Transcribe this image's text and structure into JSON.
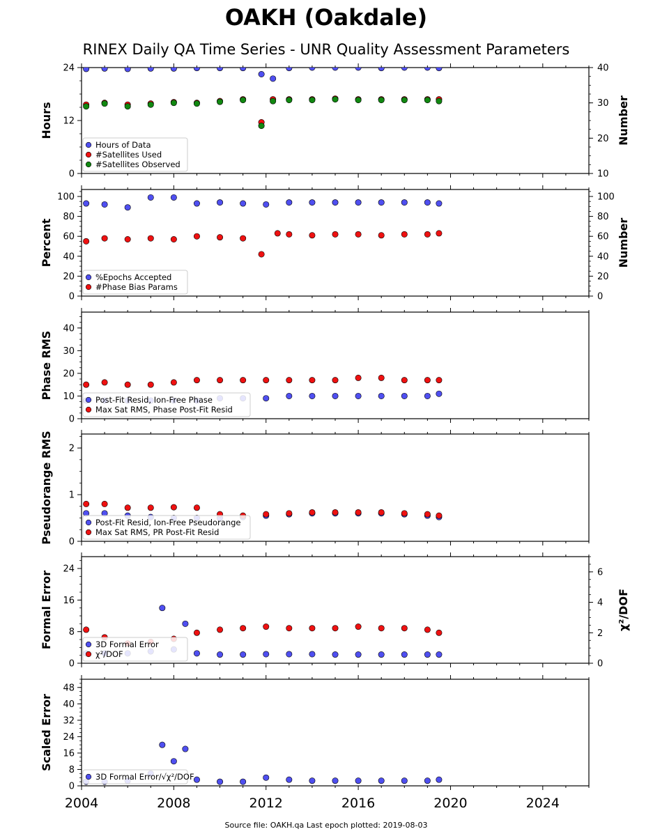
{
  "title": "OAKH (Oakdale)",
  "subtitle": "RINEX Daily QA Time Series - UNR Quality Assessment Parameters",
  "footer": "Source file: OAKH.qa Last epoch plotted: 2019-08-03",
  "colors": {
    "blue": "#4f4ff0",
    "red": "#ee1111",
    "green": "#118811",
    "edge": "#000000"
  },
  "chart_data": [
    {
      "type": "scatter",
      "ylabel": "Hours",
      "ylabel_right": "Number",
      "xlim": [
        2004,
        2026
      ],
      "xticks": [
        "2004",
        "2008",
        "2012",
        "2016",
        "2020",
        "2024"
      ],
      "ylim": [
        0,
        24
      ],
      "yticks": [
        "0",
        "12",
        "24"
      ],
      "ylim_right": [
        10,
        40
      ],
      "yticks_right": [
        "10",
        "20",
        "30",
        "40"
      ],
      "legend": [
        "Hours of Data",
        "#Satellites Used",
        "#Satellites Observed"
      ],
      "series": [
        {
          "name": "Hours of Data",
          "axis": "left",
          "x": [
            2004.2,
            2005.0,
            2006.0,
            2007.0,
            2008.0,
            2009.0,
            2010.0,
            2011.0,
            2011.8,
            2012.3,
            2013.0,
            2014.0,
            2015.0,
            2016.0,
            2017.0,
            2018.0,
            2019.0,
            2019.5
          ],
          "y": [
            23.7,
            23.8,
            23.7,
            23.8,
            23.8,
            23.9,
            23.9,
            23.9,
            22.5,
            21.5,
            23.9,
            24.0,
            24.0,
            24.0,
            23.9,
            24.0,
            24.0,
            23.9
          ]
        },
        {
          "name": "#Satellites Used",
          "axis": "right",
          "x": [
            2004.2,
            2005.0,
            2006.0,
            2007.0,
            2008.0,
            2009.0,
            2010.0,
            2011.0,
            2011.8,
            2012.3,
            2013.0,
            2014.0,
            2015.0,
            2016.0,
            2017.0,
            2018.0,
            2019.0,
            2019.5
          ],
          "y": [
            29.5,
            30.0,
            29.5,
            29.8,
            30.2,
            30.0,
            30.5,
            31.0,
            24.5,
            31.0,
            31.0,
            31.0,
            31.2,
            31.0,
            31.0,
            31.0,
            31.0,
            31.0
          ]
        },
        {
          "name": "#Satellites Observed",
          "axis": "right",
          "x": [
            2004.2,
            2005.0,
            2006.0,
            2007.0,
            2008.0,
            2009.0,
            2010.0,
            2011.0,
            2011.8,
            2012.3,
            2013.0,
            2014.0,
            2015.0,
            2016.0,
            2017.0,
            2018.0,
            2019.0,
            2019.5
          ],
          "y": [
            29.0,
            29.8,
            29.0,
            29.5,
            30.0,
            29.8,
            30.3,
            30.8,
            23.5,
            30.5,
            30.8,
            30.8,
            31.0,
            30.8,
            30.8,
            30.8,
            30.8,
            30.5
          ]
        }
      ]
    },
    {
      "type": "scatter",
      "ylabel": "Percent",
      "ylabel_right": "Number",
      "xlim": [
        2004,
        2026
      ],
      "xticks": [
        "2004",
        "2008",
        "2012",
        "2016",
        "2020",
        "2024"
      ],
      "ylim": [
        0,
        107
      ],
      "yticks": [
        "0",
        "20",
        "40",
        "60",
        "80",
        "100"
      ],
      "ylim_right": [
        0,
        107
      ],
      "yticks_right": [
        "0",
        "20",
        "40",
        "60",
        "80",
        "100"
      ],
      "legend": [
        "%Epochs Accepted",
        "#Phase Bias Params"
      ],
      "series": [
        {
          "name": "%Epochs Accepted",
          "axis": "left",
          "x": [
            2004.2,
            2005.0,
            2006.0,
            2007.0,
            2008.0,
            2009.0,
            2010.0,
            2011.0,
            2012.0,
            2013.0,
            2014.0,
            2015.0,
            2016.0,
            2017.0,
            2018.0,
            2019.0,
            2019.5
          ],
          "y": [
            93,
            92,
            89,
            99,
            99,
            93,
            94,
            93,
            92,
            94,
            94,
            94,
            94,
            94,
            94,
            94,
            93
          ]
        },
        {
          "name": "#Phase Bias Params",
          "axis": "right",
          "x": [
            2004.2,
            2005.0,
            2006.0,
            2007.0,
            2008.0,
            2009.0,
            2010.0,
            2011.0,
            2011.8,
            2012.5,
            2013.0,
            2014.0,
            2015.0,
            2016.0,
            2017.0,
            2018.0,
            2019.0,
            2019.5
          ],
          "y": [
            55,
            58,
            57,
            58,
            57,
            60,
            59,
            58,
            42,
            63,
            62,
            61,
            62,
            62,
            61,
            62,
            62,
            63
          ]
        }
      ]
    },
    {
      "type": "scatter",
      "ylabel": "Phase RMS",
      "xlim": [
        2004,
        2026
      ],
      "xticks": [
        "2004",
        "2008",
        "2012",
        "2016",
        "2020",
        "2024"
      ],
      "ylim": [
        0,
        47
      ],
      "yticks": [
        "0",
        "10",
        "20",
        "30",
        "40"
      ],
      "legend": [
        "Post-Fit Resid, Ion-Free Phase",
        "Max Sat RMS, Phase Post-Fit Resid"
      ],
      "series": [
        {
          "name": "Post-Fit Resid, Ion-Free Phase",
          "x": [
            2004.2,
            2005.0,
            2006.0,
            2007.0,
            2008.0,
            2009.0,
            2010.0,
            2011.0,
            2012.0,
            2013.0,
            2014.0,
            2015.0,
            2016.0,
            2017.0,
            2018.0,
            2019.0,
            2019.5
          ],
          "y": [
            8,
            8,
            8,
            8,
            8,
            8,
            9,
            9,
            9,
            10,
            10,
            10,
            10,
            10,
            10,
            10,
            11
          ]
        },
        {
          "name": "Max Sat RMS, Phase Post-Fit Resid",
          "x": [
            2004.2,
            2005.0,
            2006.0,
            2007.0,
            2008.0,
            2009.0,
            2010.0,
            2011.0,
            2012.0,
            2013.0,
            2014.0,
            2015.0,
            2016.0,
            2017.0,
            2018.0,
            2019.0,
            2019.5
          ],
          "y": [
            15,
            16,
            15,
            15,
            16,
            17,
            17,
            17,
            17,
            17,
            17,
            17,
            18,
            18,
            17,
            17,
            17
          ]
        }
      ]
    },
    {
      "type": "scatter",
      "ylabel": "Pseudorange RMS",
      "xlim": [
        2004,
        2026
      ],
      "xticks": [
        "2004",
        "2008",
        "2012",
        "2016",
        "2020",
        "2024"
      ],
      "ylim": [
        0,
        2.3
      ],
      "yticks": [
        "0",
        "1",
        "2"
      ],
      "legend": [
        "Post-Fit Resid, Ion-Free Pseudorange",
        "Max Sat RMS, PR Post-Fit Resid"
      ],
      "series": [
        {
          "name": "Post-Fit Resid, Ion-Free Pseudorange",
          "x": [
            2004.2,
            2005.0,
            2006.0,
            2007.0,
            2008.0,
            2009.0,
            2010.0,
            2011.0,
            2012.0,
            2013.0,
            2014.0,
            2015.0,
            2016.0,
            2017.0,
            2018.0,
            2019.0,
            2019.5
          ],
          "y": [
            0.6,
            0.6,
            0.55,
            0.52,
            0.5,
            0.5,
            0.5,
            0.52,
            0.55,
            0.58,
            0.6,
            0.6,
            0.6,
            0.6,
            0.58,
            0.55,
            0.52
          ]
        },
        {
          "name": "Max Sat RMS, PR Post-Fit Resid",
          "x": [
            2004.2,
            2005.0,
            2006.0,
            2007.0,
            2008.0,
            2009.0,
            2010.0,
            2011.0,
            2012.0,
            2013.0,
            2014.0,
            2015.0,
            2016.0,
            2017.0,
            2018.0,
            2019.0,
            2019.5
          ],
          "y": [
            0.8,
            0.8,
            0.72,
            0.72,
            0.73,
            0.72,
            0.58,
            0.55,
            0.58,
            0.6,
            0.62,
            0.62,
            0.62,
            0.62,
            0.6,
            0.58,
            0.55
          ]
        }
      ]
    },
    {
      "type": "scatter",
      "ylabel": "Formal Error",
      "ylabel_right": "χ²/DOF",
      "xlim": [
        2004,
        2026
      ],
      "xticks": [
        "2004",
        "2008",
        "2012",
        "2016",
        "2020",
        "2024"
      ],
      "ylim": [
        0,
        27
      ],
      "yticks": [
        "0",
        "8",
        "16",
        "24"
      ],
      "ylim_right": [
        0,
        7
      ],
      "yticks_right": [
        "0",
        "2",
        "4",
        "6"
      ],
      "legend": [
        "3D Formal Error",
        "χ²/DOF"
      ],
      "series": [
        {
          "name": "3D Formal Error",
          "axis": "left",
          "x": [
            2004.2,
            2005.0,
            2006.0,
            2007.0,
            2007.5,
            2008.0,
            2008.5,
            2009.0,
            2010.0,
            2011.0,
            2012.0,
            2013.0,
            2014.0,
            2015.0,
            2016.0,
            2017.0,
            2018.0,
            2019.0,
            2019.5
          ],
          "y": [
            2.5,
            2.5,
            2.5,
            3.0,
            14,
            3.5,
            10,
            2.5,
            2.2,
            2.2,
            2.3,
            2.3,
            2.3,
            2.2,
            2.2,
            2.2,
            2.2,
            2.2,
            2.2
          ]
        },
        {
          "name": "χ²/DOF",
          "axis": "right",
          "x": [
            2004.2,
            2005.0,
            2006.0,
            2007.0,
            2008.0,
            2009.0,
            2010.0,
            2011.0,
            2012.0,
            2013.0,
            2014.0,
            2015.0,
            2016.0,
            2017.0,
            2018.0,
            2019.0,
            2019.5
          ],
          "y": [
            2.2,
            1.7,
            1.3,
            1.4,
            1.6,
            2.0,
            2.2,
            2.3,
            2.4,
            2.3,
            2.3,
            2.3,
            2.4,
            2.3,
            2.3,
            2.2,
            2.0
          ]
        }
      ]
    },
    {
      "type": "scatter",
      "ylabel": "Scaled Error",
      "xlim": [
        2004,
        2026
      ],
      "xticks": [
        "2004",
        "2008",
        "2012",
        "2016",
        "2020",
        "2024"
      ],
      "ylim": [
        0,
        52
      ],
      "yticks": [
        "0",
        "8",
        "16",
        "24",
        "32",
        "40",
        "48"
      ],
      "legend": [
        "3D Formal Error/√χ²/DOF"
      ],
      "series": [
        {
          "name": "3D Formal Error/√χ²/DOF",
          "x": [
            2004.2,
            2005.0,
            2006.0,
            2007.0,
            2007.5,
            2008.0,
            2008.5,
            2009.0,
            2010.0,
            2011.0,
            2012.0,
            2013.0,
            2014.0,
            2015.0,
            2016.0,
            2017.0,
            2018.0,
            2019.0,
            2019.5
          ],
          "y": [
            2,
            2,
            2.5,
            6,
            20,
            12,
            18,
            3,
            2,
            2,
            4,
            3,
            2.5,
            2.5,
            2.5,
            2.5,
            2.5,
            2.5,
            3
          ]
        }
      ]
    }
  ]
}
